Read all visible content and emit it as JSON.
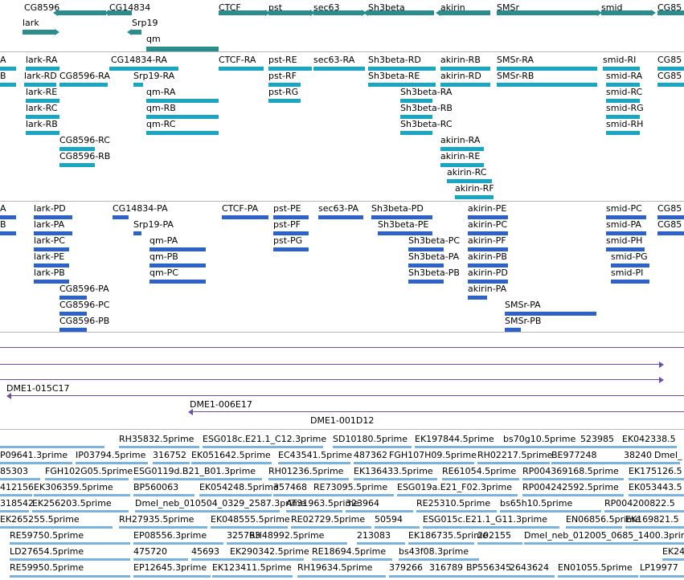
{
  "colors": {
    "gene": "#2a8c8c",
    "transcript": "#17a6c4",
    "protein": "#2d62c8",
    "clone": "#6b4fa8",
    "est": "#7bb3e0"
  },
  "tracks": {
    "genes": [
      {
        "label": "CG8596"
      },
      {
        "label": "CG14834"
      },
      {
        "label": "CTCF"
      },
      {
        "label": "pst"
      },
      {
        "label": "sec63"
      },
      {
        "label": "Sh3beta"
      },
      {
        "label": "akirin"
      },
      {
        "label": "SMSr"
      },
      {
        "label": "smid"
      },
      {
        "label": "CG85"
      },
      {
        "label": "lark"
      },
      {
        "label": "Srp19"
      },
      {
        "label": "qm"
      }
    ],
    "transcripts": [
      {
        "label": "A"
      },
      {
        "label": "lark-RA"
      },
      {
        "label": "CG14834-RA"
      },
      {
        "label": "CTCF-RA"
      },
      {
        "label": "pst-RE"
      },
      {
        "label": "sec63-RA"
      },
      {
        "label": "Sh3beta-RD"
      },
      {
        "label": "akirin-RB"
      },
      {
        "label": "SMSr-RA"
      },
      {
        "label": "smid-RI"
      },
      {
        "label": "CG85"
      },
      {
        "label": "B"
      },
      {
        "label": "lark-RD"
      },
      {
        "label": "CG8596-RA"
      },
      {
        "label": "Srp19-RA"
      },
      {
        "label": "pst-RF"
      },
      {
        "label": "Sh3beta-RE"
      },
      {
        "label": "akirin-RD"
      },
      {
        "label": "SMSr-RB"
      },
      {
        "label": "smid-RA"
      },
      {
        "label": "CG85"
      },
      {
        "label": "lark-RE"
      },
      {
        "label": "qm-RA"
      },
      {
        "label": "pst-RG"
      },
      {
        "label": "Sh3beta-RA"
      },
      {
        "label": "smid-RC"
      },
      {
        "label": "lark-RC"
      },
      {
        "label": "qm-RB"
      },
      {
        "label": "Sh3beta-RB"
      },
      {
        "label": "smid-RG"
      },
      {
        "label": "lark-RB"
      },
      {
        "label": "qm-RC"
      },
      {
        "label": "Sh3beta-RC"
      },
      {
        "label": "smid-RH"
      },
      {
        "label": "CG8596-RC"
      },
      {
        "label": "akirin-RA"
      },
      {
        "label": "CG8596-RB"
      },
      {
        "label": "akirin-RE"
      },
      {
        "label": "akirin-RC"
      },
      {
        "label": "akirin-RF"
      }
    ],
    "proteins": [
      {
        "label": "A"
      },
      {
        "label": "lark-PD"
      },
      {
        "label": "CG14834-PA"
      },
      {
        "label": "CTCF-PA"
      },
      {
        "label": "pst-PE"
      },
      {
        "label": "sec63-PA"
      },
      {
        "label": "Sh3beta-PD"
      },
      {
        "label": "akirin-PE"
      },
      {
        "label": "smid-PC"
      },
      {
        "label": "CG85"
      },
      {
        "label": "B"
      },
      {
        "label": "lark-PA"
      },
      {
        "label": "Srp19-PA"
      },
      {
        "label": "pst-PF"
      },
      {
        "label": "Sh3beta-PE"
      },
      {
        "label": "akirin-PC"
      },
      {
        "label": "smid-PA"
      },
      {
        "label": "CG85"
      },
      {
        "label": "lark-PC"
      },
      {
        "label": "qm-PA"
      },
      {
        "label": "pst-PG"
      },
      {
        "label": "Sh3beta-PC"
      },
      {
        "label": "akirin-PF"
      },
      {
        "label": "smid-PH"
      },
      {
        "label": "lark-PE"
      },
      {
        "label": "qm-PB"
      },
      {
        "label": "Sh3beta-PA"
      },
      {
        "label": "akirin-PB"
      },
      {
        "label": "smid-PG"
      },
      {
        "label": "lark-PB"
      },
      {
        "label": "qm-PC"
      },
      {
        "label": "Sh3beta-PB"
      },
      {
        "label": "akirin-PD"
      },
      {
        "label": "smid-PI"
      },
      {
        "label": "CG8596-PA"
      },
      {
        "label": "akirin-PA"
      },
      {
        "label": "CG8596-PC"
      },
      {
        "label": "SMSr-PA"
      },
      {
        "label": "CG8596-PB"
      },
      {
        "label": "SMSr-PB"
      }
    ],
    "clones": [
      {
        "label": "DME1-015C17"
      },
      {
        "label": "DME1-006E17"
      },
      {
        "label": "DME1-001D12"
      }
    ],
    "ests": [
      {
        "label": "RH35832.5prime"
      },
      {
        "label": "ESG018c.E21.1_C12.3prime"
      },
      {
        "label": "SD10180.5prime"
      },
      {
        "label": "EK197844.5prime"
      },
      {
        "label": "bs70g10.5prime"
      },
      {
        "label": "523985"
      },
      {
        "label": "EK042338.5"
      },
      {
        "label": "P09641.3prime"
      },
      {
        "label": "IP03794.5prime"
      },
      {
        "label": "316752"
      },
      {
        "label": "EK051642.5prime"
      },
      {
        "label": "EC43541.5prime"
      },
      {
        "label": "487362"
      },
      {
        "label": "FGH107H09.5prime"
      },
      {
        "label": "RH02217.5prime"
      },
      {
        "label": "BE977248"
      },
      {
        "label": "38240"
      },
      {
        "label": "Dmel_"
      },
      {
        "label": "85303"
      },
      {
        "label": "FGH102G05.5prime"
      },
      {
        "label": "ESG0119d.B21_B01.3prime"
      },
      {
        "label": "RH01236.5prime"
      },
      {
        "label": "EK136433.5prime"
      },
      {
        "label": "RE61054.5prime"
      },
      {
        "label": "RP004369168.5prime"
      },
      {
        "label": "EK175126.5"
      },
      {
        "label": "412156"
      },
      {
        "label": "EK306359.5prime"
      },
      {
        "label": "BP560063"
      },
      {
        "label": "EK054248.5prime"
      },
      {
        "label": "357468"
      },
      {
        "label": "RE73095.5prime"
      },
      {
        "label": "ESG019a.E21_F02.3prime"
      },
      {
        "label": "RP004242592.5prime"
      },
      {
        "label": "EK053443.5"
      },
      {
        "label": "318542"
      },
      {
        "label": "EK256203.5prime"
      },
      {
        "label": "Dmel_neb_010504_0329_2587.3prime"
      },
      {
        "label": "AT31963.5prime"
      },
      {
        "label": "323964"
      },
      {
        "label": "RE25310.5prime"
      },
      {
        "label": "bs65h10.5prime"
      },
      {
        "label": "RP004200822.5"
      },
      {
        "label": "EK265255.5prime"
      },
      {
        "label": "RH27935.5prime"
      },
      {
        "label": "EK048555.5prime"
      },
      {
        "label": "RE02729.5prime"
      },
      {
        "label": "50594"
      },
      {
        "label": "ESG015c.E21.1_G11.3prime"
      },
      {
        "label": "EN06856.5prime"
      },
      {
        "label": "EK169821.5"
      },
      {
        "label": "RE59750.5prime"
      },
      {
        "label": "EP08556.3prime"
      },
      {
        "label": "325763"
      },
      {
        "label": "RH48992.5prime"
      },
      {
        "label": "213083"
      },
      {
        "label": "EK186735.5prime"
      },
      {
        "label": "202155"
      },
      {
        "label": "Dmel_neb_012005_0685_1400.3prime"
      },
      {
        "label": "LD27654.5prime"
      },
      {
        "label": "475720"
      },
      {
        "label": "45693"
      },
      {
        "label": "EK290342.5prime"
      },
      {
        "label": "RE18694.5prime"
      },
      {
        "label": "bs43f08.3prime"
      },
      {
        "label": "EK24"
      },
      {
        "label": "RE59950.5prime"
      },
      {
        "label": "EP12645.3prime"
      },
      {
        "label": "EK123411.5prime"
      },
      {
        "label": "RH19634.5prime"
      },
      {
        "label": "379266"
      },
      {
        "label": "316789"
      },
      {
        "label": "BP556345"
      },
      {
        "label": "2643624"
      },
      {
        "label": "EN01055.5prime"
      },
      {
        "label": "LP19977"
      }
    ]
  }
}
